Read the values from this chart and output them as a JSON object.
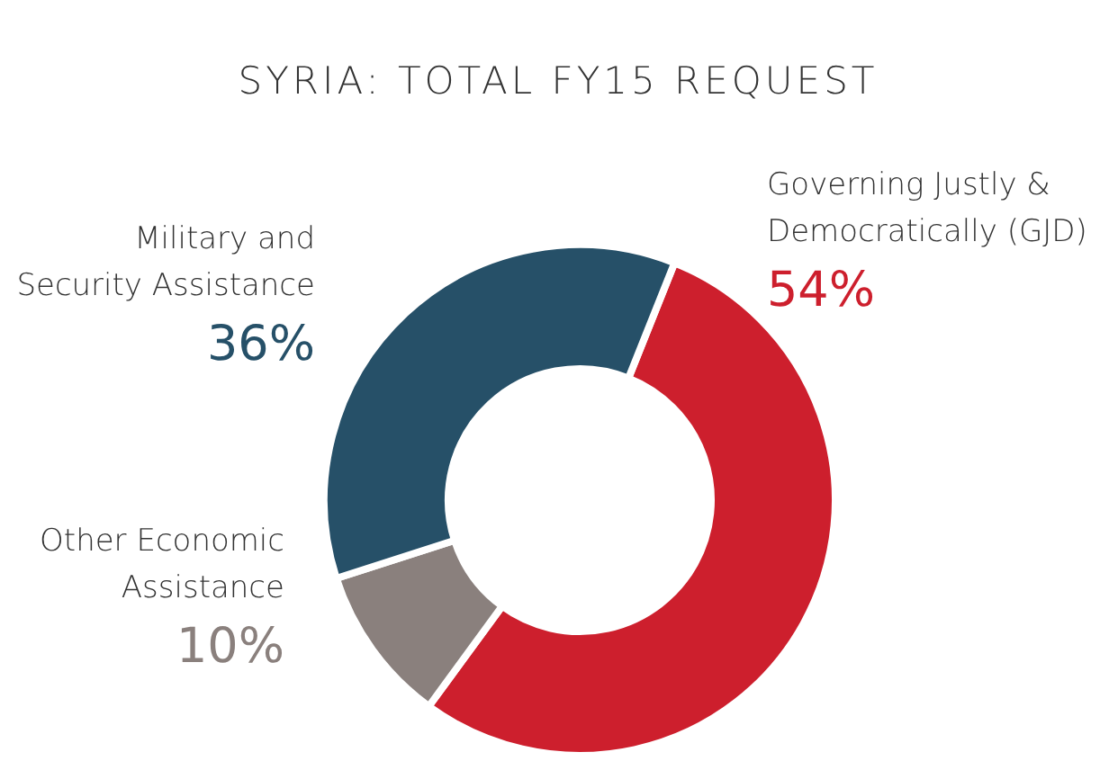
{
  "chart_data": {
    "type": "donut",
    "title": "SYRIA: TOTAL FY15 REQUEST",
    "categories": [
      "Governing Justly &\nDemocratically (GJD)",
      "Other Economic\nAssistance",
      "Military and\nSecurity Assistance"
    ],
    "values": [
      54,
      10,
      36
    ],
    "colors": [
      "#cd1f2d",
      "#8a807d",
      "#265068"
    ],
    "value_labels": [
      "54%",
      "10%",
      "36%"
    ]
  }
}
